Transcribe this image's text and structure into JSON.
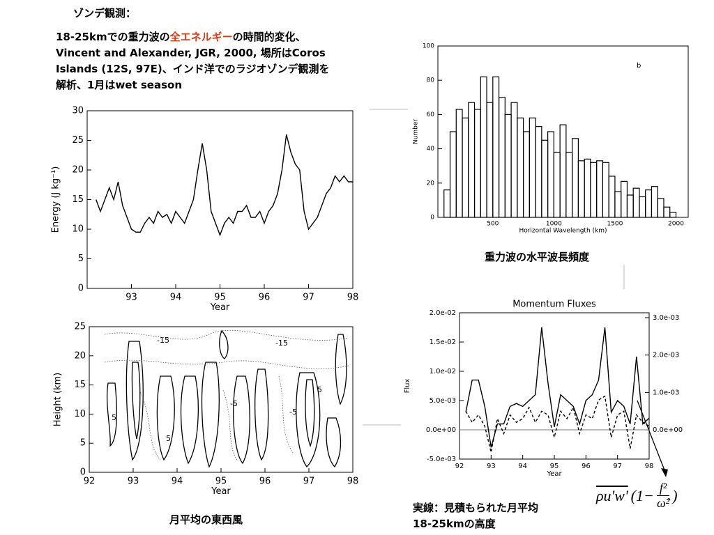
{
  "slide": {
    "heading": "ゾンデ観測：",
    "desc": {
      "l1a": "18-25kmでの重力波の",
      "l1red": "全エネルギー",
      "l1b": "の時間的変化、",
      "l2": "Vincent and Alexander, JGR, 2000, 場所はCoros",
      "l3": "Islands (12S, 97E)、インド洋でのラジオゾンデ観測を",
      "l4": "解析、1月はwet season"
    },
    "caption_hist": "重力波の水平波長頻度",
    "caption_wind": "月平均の東西風",
    "caption_flux1": "実線：見積もられた月平均",
    "caption_flux2": "18-25kmの高度",
    "formula": {
      "lhs": "ρu'w'",
      "open": "(1−",
      "num": "f²",
      "den": "ω̂²",
      "close": ")"
    }
  },
  "chart_data": [
    {
      "type": "line",
      "ylabel": "Energy (J kg⁻¹)",
      "xlabel": "Year",
      "color": "#000000",
      "x": [
        92.2,
        92.3,
        92.4,
        92.5,
        92.6,
        92.7,
        92.8,
        92.9,
        93.0,
        93.1,
        93.2,
        93.3,
        93.4,
        93.5,
        93.6,
        93.7,
        93.8,
        93.9,
        94.0,
        94.1,
        94.2,
        94.3,
        94.4,
        94.5,
        94.6,
        94.7,
        94.8,
        94.9,
        95.0,
        95.1,
        95.2,
        95.3,
        95.4,
        95.5,
        95.6,
        95.7,
        95.8,
        95.9,
        96.0,
        96.1,
        96.2,
        96.3,
        96.4,
        96.5,
        96.6,
        96.7,
        96.8,
        96.9,
        97.0,
        97.1,
        97.2,
        97.3,
        97.4,
        97.5,
        97.6,
        97.7,
        97.8,
        97.9,
        98.0
      ],
      "values": [
        15,
        13,
        15,
        17,
        15,
        18,
        14,
        12,
        10,
        9.5,
        9.5,
        11,
        12,
        11,
        13,
        12,
        12.5,
        11,
        13,
        12,
        11,
        13,
        15,
        20,
        24.5,
        20,
        13,
        11,
        9,
        11,
        12,
        11,
        13,
        13,
        14,
        12,
        12,
        13,
        11,
        13,
        14,
        16,
        20,
        26,
        23,
        21,
        20,
        13,
        10,
        11,
        12,
        14,
        16,
        17,
        19,
        18,
        19,
        18,
        18
      ],
      "xlim": [
        92,
        98
      ],
      "xticks": [
        93,
        94,
        95,
        96,
        97,
        98
      ],
      "ylim": [
        0,
        30
      ],
      "yticks": [
        0,
        5,
        10,
        15,
        20,
        25,
        30
      ]
    },
    {
      "type": "histogram",
      "ylabel": "Number",
      "xlabel": "Horizontal Wavelength (km)",
      "annotation": "b",
      "color": "#000000",
      "bins": [
        100,
        150,
        200,
        250,
        300,
        350,
        400,
        450,
        500,
        550,
        600,
        650,
        700,
        750,
        800,
        850,
        900,
        950,
        1000,
        1050,
        1100,
        1150,
        1200,
        1250,
        1300,
        1350,
        1400,
        1450,
        1500,
        1550,
        1600,
        1650,
        1700,
        1750,
        1800,
        1850,
        1900,
        1950,
        2000
      ],
      "values": [
        16,
        50,
        63,
        58,
        67,
        63,
        82,
        67,
        82,
        70,
        60,
        67,
        58,
        50,
        58,
        53,
        45,
        50,
        38,
        54,
        38,
        46,
        33,
        34,
        32,
        33,
        32,
        24,
        15,
        21,
        13,
        17,
        12,
        16,
        18,
        11,
        6,
        3
      ],
      "xlim": [
        50,
        2100
      ],
      "xticks": [
        500,
        1000,
        1500,
        2000
      ],
      "ylim": [
        0,
        100
      ],
      "yticks": [
        0,
        20,
        40,
        60,
        80,
        100
      ]
    },
    {
      "type": "contour",
      "ylabel": "Height (km)",
      "xlabel": "Year",
      "contour_labels": [
        "-15",
        "-15",
        "-5",
        "-5",
        "5",
        "5",
        "5"
      ],
      "xlim": [
        92,
        98
      ],
      "xticks": [
        92,
        93,
        94,
        95,
        96,
        97,
        98
      ],
      "ylim": [
        0,
        25
      ],
      "yticks": [
        0,
        5,
        10,
        15,
        20,
        25
      ]
    },
    {
      "type": "line",
      "title": "Momentum Fluxes",
      "ylabel": "Flux",
      "xlabel": "Year",
      "x": [
        92.2,
        92.4,
        92.6,
        92.8,
        93.0,
        93.2,
        93.4,
        93.6,
        93.8,
        94.0,
        94.2,
        94.4,
        94.6,
        94.8,
        95.0,
        95.2,
        95.4,
        95.6,
        95.8,
        96.0,
        96.2,
        96.4,
        96.6,
        96.8,
        97.0,
        97.2,
        97.4,
        97.6,
        97.8,
        98.0
      ],
      "series": [
        {
          "color": "#000000",
          "dash": false,
          "values": [
            0.003,
            0.0085,
            0.0085,
            0.004,
            -0.003,
            0.001,
            0.001,
            0.004,
            0.0045,
            0.004,
            0.005,
            0.006,
            0.0175,
            0.008,
            0.0005,
            0.006,
            0.005,
            0.004,
            0.001,
            0.005,
            0.006,
            0.0085,
            0.0175,
            0.003,
            0.005,
            0.004,
            0.001,
            0.0125,
            0.001,
            0.002
          ]
        },
        {
          "color": "#000000",
          "dash": true,
          "axis": "y2",
          "values": [
            0.0005,
            0.0002,
            0.0004,
            0.0001,
            -0.0006,
            0.0003,
            -0.0001,
            0.0004,
            0.0002,
            0.0003,
            0.0006,
            0.0002,
            0.0005,
            0.0004,
            -0.0002,
            0.0005,
            0.0003,
            0.0006,
            -0.0001,
            0.0004,
            0.0003,
            0.0008,
            0.0009,
            -0.0002,
            0.0004,
            0.0005,
            -0.0005,
            0.0004,
            0.0002,
            0.0001
          ]
        }
      ],
      "xlim": [
        92,
        98
      ],
      "xticks": [
        92,
        93,
        94,
        95,
        96,
        97,
        98
      ],
      "ylim": [
        -0.005,
        0.02
      ],
      "yticks": [
        {
          "value": -0.005,
          "label": "-5.0e-03"
        },
        {
          "value": 0,
          "label": "0.0e+00"
        },
        {
          "value": 0.005,
          "label": "5.0e-03"
        },
        {
          "value": 0.01,
          "label": "1.0e-02"
        },
        {
          "value": 0.015,
          "label": "1.5e-02"
        },
        {
          "value": 0.02,
          "label": "2.0e-02"
        }
      ],
      "y2lim": [
        -0.00078,
        0.00313
      ],
      "y2ticks": [
        {
          "value": 0,
          "label": "0.0e+00"
        },
        {
          "value": 0.001,
          "label": "1.0e-03"
        },
        {
          "value": 0.002,
          "label": "2.0e-03"
        },
        {
          "value": 0.003,
          "label": "3.0e-03"
        }
      ],
      "zero_line": true
    }
  ]
}
